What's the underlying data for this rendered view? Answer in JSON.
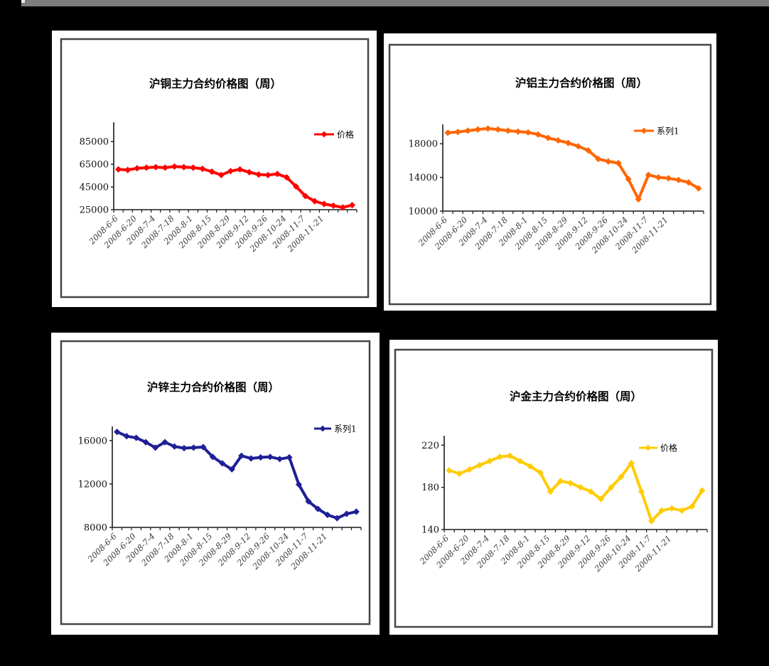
{
  "window": {
    "top_bar_color": "#7d7d7d",
    "background_color": "#000000",
    "panel_color": "#ffffff",
    "panel_border_color": "#454545"
  },
  "chart_data": [
    {
      "type": "line",
      "id": "copper",
      "title": "沪铜主力合约价格图（周）",
      "legend": [
        "价格"
      ],
      "legend_position": "upper-right",
      "grid": false,
      "color": "#ff0000",
      "x_labels": [
        "2008-6-6",
        "2008-6-20",
        "2008-7-4",
        "2008-7-18",
        "2008-8-1",
        "2008-8-15",
        "2008-8-29",
        "2008-9-12",
        "2008-9-26",
        "2008-10-24",
        "2008-11-7",
        "2008-11-21"
      ],
      "y_ticks": [
        25000,
        45000,
        65000,
        85000
      ],
      "ylim": [
        25000,
        102000
      ],
      "series": [
        {
          "name": "价格",
          "values": [
            60500,
            60000,
            61500,
            62000,
            62500,
            62000,
            63000,
            62500,
            62000,
            61000,
            58500,
            55500,
            59000,
            60500,
            58000,
            56000,
            55500,
            56500,
            53500,
            45500,
            37000,
            32500,
            30000,
            28500,
            27000,
            29000
          ]
        }
      ]
    },
    {
      "type": "line",
      "id": "aluminum",
      "title": "沪铝主力合约价格图（周）",
      "legend": [
        "系列1"
      ],
      "legend_position": "upper-right",
      "grid": false,
      "color": "#ff6600",
      "x_labels": [
        "2008-6-6",
        "2008-6-20",
        "2008-7-4",
        "2008-7-18",
        "2008-8-1",
        "2008-8-15",
        "2008-8-29",
        "2008-9-12",
        "2008-9-26",
        "2008-10-24",
        "2008-11-7",
        "2008-11-21"
      ],
      "y_ticks": [
        10000,
        14000,
        18000
      ],
      "ylim": [
        10000,
        20300
      ],
      "series": [
        {
          "name": "系列1",
          "values": [
            19300,
            19400,
            19550,
            19700,
            19800,
            19700,
            19550,
            19450,
            19350,
            19100,
            18700,
            18400,
            18100,
            17700,
            17200,
            16200,
            15900,
            15700,
            13800,
            11400,
            14300,
            14000,
            13900,
            13700,
            13400,
            12700
          ]
        }
      ]
    },
    {
      "type": "line",
      "id": "zinc",
      "title": "沪锌主力合约价格图（周）",
      "legend": [
        "系列1"
      ],
      "legend_position": "upper-right",
      "grid": false,
      "color": "#1f1f96",
      "x_labels": [
        "2008-6-6",
        "2008-6-20",
        "2008-7-4",
        "2008-7-18",
        "2008-8-1",
        "2008-8-15",
        "2008-8-29",
        "2008-9-12",
        "2008-9-26",
        "2008-10-24",
        "2008-11-7",
        "2008-11-21"
      ],
      "y_ticks": [
        8000,
        12000,
        16000
      ],
      "ylim": [
        8000,
        17300
      ],
      "series": [
        {
          "name": "系列1",
          "values": [
            16800,
            16400,
            16250,
            15850,
            15350,
            15850,
            15450,
            15300,
            15350,
            15400,
            14500,
            13900,
            13350,
            14600,
            14350,
            14450,
            14500,
            14300,
            14450,
            11950,
            10400,
            9700,
            9150,
            8850,
            9250,
            9450
          ]
        }
      ]
    },
    {
      "type": "line",
      "id": "gold",
      "title": "沪金主力合约价格图（周）",
      "legend": [
        "价格"
      ],
      "legend_position": "upper-right",
      "grid": false,
      "color": "#ffcc00",
      "x_labels": [
        "2008-6-6",
        "2008-6-20",
        "2008-7-4",
        "2008-7-18",
        "2008-8-1",
        "2008-8-15",
        "2008-8-29",
        "2008-9-12",
        "2008-9-26",
        "2008-10-24",
        "2008-11-7",
        "2008-11-21"
      ],
      "y_ticks": [
        140,
        180,
        220
      ],
      "ylim": [
        140,
        229
      ],
      "series": [
        {
          "name": "价格",
          "values": [
            196,
            193,
            197,
            201,
            205,
            209,
            210,
            205,
            200,
            194,
            176,
            186,
            184,
            180,
            176,
            169,
            180,
            190,
            203,
            176,
            148,
            158,
            160,
            158,
            162,
            177
          ]
        }
      ]
    }
  ]
}
